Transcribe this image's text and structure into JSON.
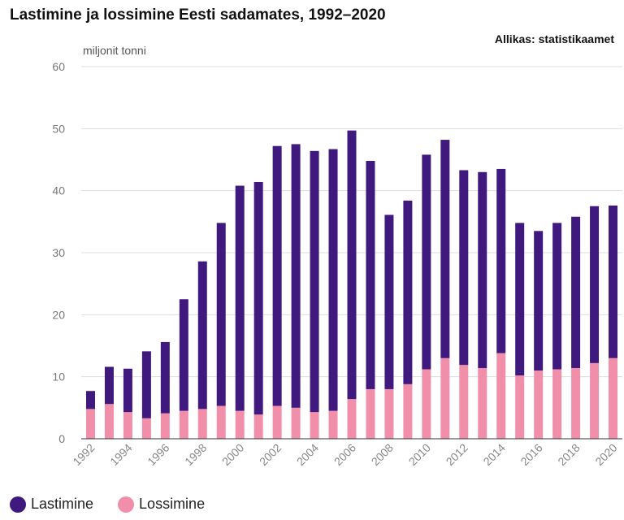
{
  "title": "Lastimine ja lossimine Eesti sadamates, 1992–2020",
  "source": "Allikas: statistikaamet",
  "unit": "miljonit tonni",
  "colors": {
    "lastimine": "#40197f",
    "lossimine": "#f18fab",
    "grid": "#dddddd",
    "axis": "#333333"
  },
  "legend": [
    {
      "label": "Lastimine",
      "color": "#40197f"
    },
    {
      "label": "Lossimine",
      "color": "#f18fab"
    }
  ],
  "chart_data": {
    "type": "bar",
    "stacked": true,
    "title": "Lastimine ja lossimine Eesti sadamates, 1992–2020",
    "ylabel": "miljonit tonni",
    "ylim": [
      0,
      60
    ],
    "yticks": [
      0,
      10,
      20,
      30,
      40,
      50,
      60
    ],
    "grid": true,
    "legend_position": "bottom-left",
    "categories": [
      "1992",
      "1993",
      "1994",
      "1995",
      "1996",
      "1997",
      "1998",
      "1999",
      "2000",
      "2001",
      "2002",
      "2003",
      "2004",
      "2005",
      "2006",
      "2007",
      "2008",
      "2009",
      "2010",
      "2011",
      "2012",
      "2013",
      "2014",
      "2015",
      "2016",
      "2017",
      "2018",
      "2019",
      "2020"
    ],
    "xtick_labels": [
      "1992",
      "1994",
      "1996",
      "1998",
      "2000",
      "2002",
      "2004",
      "2006",
      "2008",
      "2010",
      "2012",
      "2014",
      "2016",
      "2018",
      "2020"
    ],
    "series": [
      {
        "name": "Lossimine",
        "values": [
          4.8,
          5.6,
          4.3,
          3.3,
          4.1,
          4.5,
          4.8,
          5.3,
          4.5,
          3.9,
          5.3,
          5.0,
          4.3,
          4.5,
          6.4,
          8.0,
          8.0,
          8.8,
          11.2,
          13.0,
          11.9,
          11.4,
          13.8,
          10.2,
          11.0,
          11.2,
          11.4,
          12.2,
          13.0
        ]
      },
      {
        "name": "Lastimine",
        "values": [
          2.9,
          6.0,
          7.0,
          10.8,
          11.5,
          18.0,
          23.8,
          29.5,
          36.3,
          37.5,
          41.9,
          42.5,
          42.1,
          42.2,
          43.3,
          36.8,
          28.1,
          29.6,
          34.6,
          35.2,
          31.4,
          31.6,
          29.7,
          24.6,
          22.5,
          23.6,
          24.4,
          25.3,
          24.6
        ]
      }
    ]
  }
}
